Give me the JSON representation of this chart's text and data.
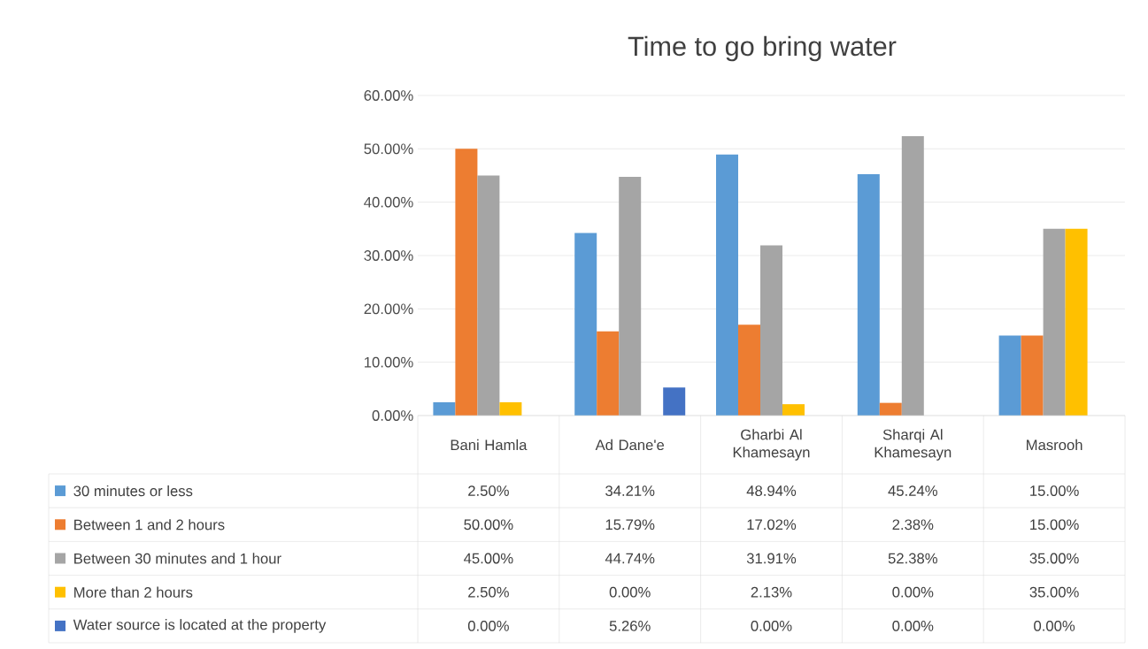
{
  "chart_data": {
    "type": "bar",
    "title": "Time to go bring water",
    "categories": [
      "Bani Hamla",
      "Ad Dane'e",
      "Gharbi Al Khamesayn",
      "Sharqi Al Khamesayn",
      "Masrooh"
    ],
    "ylim": [
      0,
      60
    ],
    "yticks": [
      {
        "value": 0,
        "label": "0.00%"
      },
      {
        "value": 10,
        "label": "10.00%"
      },
      {
        "value": 20,
        "label": "20.00%"
      },
      {
        "value": 30,
        "label": "30.00%"
      },
      {
        "value": 40,
        "label": "40.00%"
      },
      {
        "value": 50,
        "label": "50.00%"
      },
      {
        "value": 60,
        "label": "60.00%"
      }
    ],
    "grid": "y",
    "legend": "bottom",
    "series": [
      {
        "name": "30 minutes or less",
        "color": "#5b9bd5",
        "values": [
          2.5,
          34.21,
          48.94,
          45.24,
          15.0
        ],
        "value_labels": [
          "2.50%",
          "34.21%",
          "48.94%",
          "45.24%",
          "15.00%"
        ]
      },
      {
        "name": "Between 1  and 2 hours",
        "color": "#ed7d31",
        "values": [
          50.0,
          15.79,
          17.02,
          2.38,
          15.0
        ],
        "value_labels": [
          "50.00%",
          "15.79%",
          "17.02%",
          "2.38%",
          "15.00%"
        ]
      },
      {
        "name": "Between 30 minutes and 1 hour",
        "color": "#a5a5a5",
        "values": [
          45.0,
          44.74,
          31.91,
          52.38,
          35.0
        ],
        "value_labels": [
          "45.00%",
          "44.74%",
          "31.91%",
          "52.38%",
          "35.00%"
        ]
      },
      {
        "name": "More than 2 hours",
        "color": "#ffc000",
        "values": [
          2.5,
          0.0,
          2.13,
          0.0,
          35.0
        ],
        "value_labels": [
          "2.50%",
          "0.00%",
          "2.13%",
          "0.00%",
          "35.00%"
        ]
      },
      {
        "name": "Water source is located at the property",
        "color": "#4472c4",
        "values": [
          0.0,
          5.26,
          0.0,
          0.0,
          0.0
        ],
        "value_labels": [
          "0.00%",
          "5.26%",
          "0.00%",
          "0.00%",
          "0.00%"
        ]
      }
    ]
  }
}
